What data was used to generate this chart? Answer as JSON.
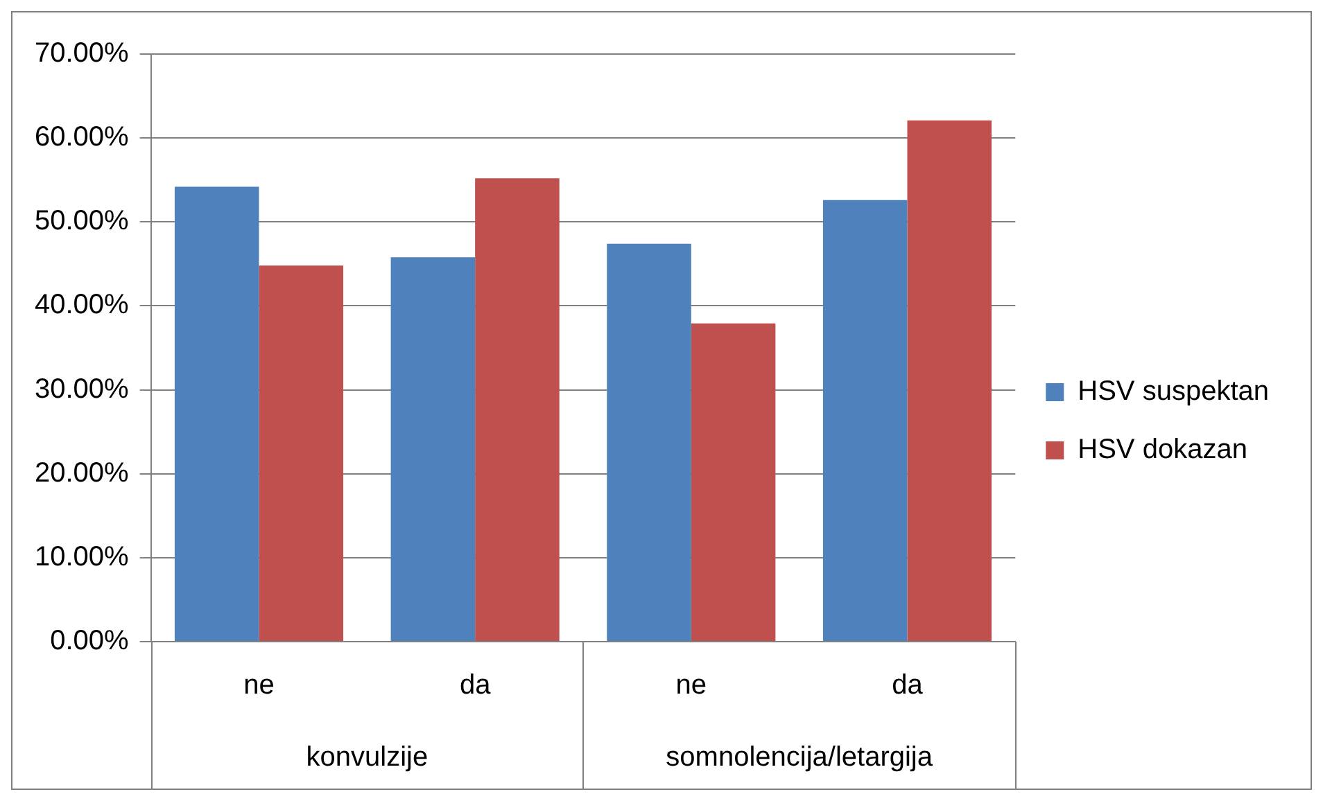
{
  "chart_data": {
    "type": "bar",
    "categories": [
      "ne",
      "da",
      "ne",
      "da"
    ],
    "series": [
      {
        "name": "HSV suspektan",
        "color": "#4f81bd",
        "values": [
          54.2,
          45.8,
          47.4,
          52.6
        ]
      },
      {
        "name": "HSV dokazan",
        "color": "#c0504d",
        "values": [
          44.8,
          55.2,
          37.9,
          62.1
        ]
      }
    ],
    "annotations": [
      "konvulzije",
      "somnolencija/letargija"
    ],
    "ylim": [
      0,
      70
    ],
    "yticks": [
      {
        "value": 0,
        "label": "0.00%"
      },
      {
        "value": 10,
        "label": "10.00%"
      },
      {
        "value": 20,
        "label": "20.00%"
      },
      {
        "value": 30,
        "label": "30.00%"
      },
      {
        "value": 40,
        "label": "40.00%"
      },
      {
        "value": 50,
        "label": "50.00%"
      },
      {
        "value": 60,
        "label": "60.00%"
      },
      {
        "value": 70,
        "label": "70.00%"
      }
    ],
    "grid": "y",
    "legend": "right"
  }
}
